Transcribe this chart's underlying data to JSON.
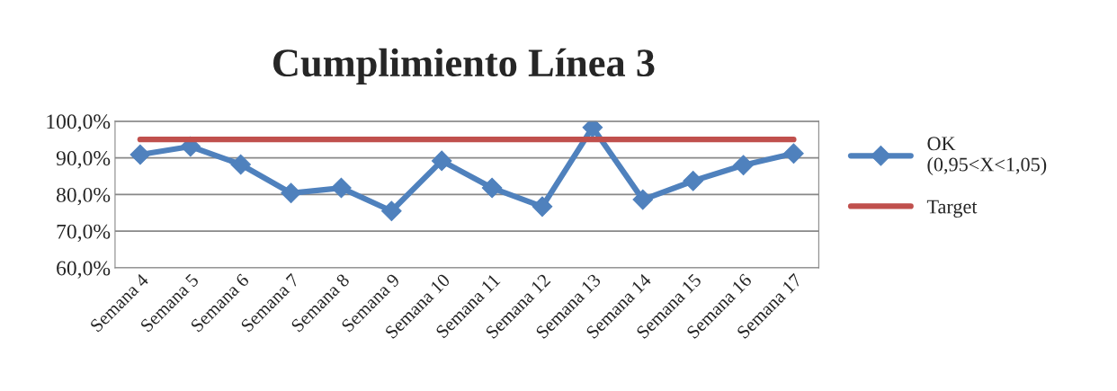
{
  "chart_data": {
    "type": "line",
    "title": "Cumplimiento Línea 3",
    "categories": [
      "Semana 4",
      "Semana 5",
      "Semana 6",
      "Semana 7",
      "Semana 8",
      "Semana 9",
      "Semana 10",
      "Semana 11",
      "Semana 12",
      "Semana 13",
      "Semana 14",
      "Semana 15",
      "Semana 16",
      "Semana 17"
    ],
    "series": [
      {
        "name": "OK\n(0,95<X<1,05)",
        "color": "#4f81bd",
        "marker": "diamond",
        "values": [
          90.9,
          93.1,
          88.2,
          80.4,
          81.8,
          75.5,
          89.2,
          81.8,
          76.7,
          98.3,
          78.6,
          83.7,
          88.0,
          91.2
        ]
      },
      {
        "name": "Target",
        "color": "#c0504d",
        "marker": "none",
        "values": [
          95,
          95,
          95,
          95,
          95,
          95,
          95,
          95,
          95,
          95,
          95,
          95,
          95,
          95
        ]
      }
    ],
    "ylim": [
      60,
      100
    ],
    "yticks": [
      {
        "value": 60,
        "label": "60,0%"
      },
      {
        "value": 70,
        "label": "70,0%"
      },
      {
        "value": 80,
        "label": "80,0%"
      },
      {
        "value": 90,
        "label": "90,0%"
      },
      {
        "value": 100,
        "label": "100,0%"
      }
    ],
    "grid": "y",
    "legend": "right",
    "line_style": "solid"
  }
}
